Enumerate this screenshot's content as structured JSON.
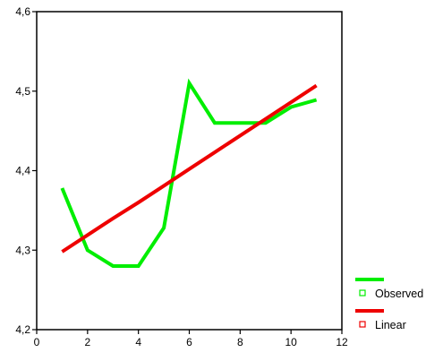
{
  "chart_data": {
    "type": "line",
    "title": "",
    "xlabel": "",
    "ylabel": "",
    "xlim": [
      0,
      12
    ],
    "ylim": [
      4.2,
      4.6
    ],
    "x_ticks": [
      {
        "value": 0,
        "label": "0"
      },
      {
        "value": 2,
        "label": "2"
      },
      {
        "value": 4,
        "label": "4"
      },
      {
        "value": 6,
        "label": "6"
      },
      {
        "value": 8,
        "label": "8"
      },
      {
        "value": 10,
        "label": "10"
      },
      {
        "value": 12,
        "label": "12"
      }
    ],
    "y_ticks": [
      {
        "value": 4.2,
        "label": "4,2"
      },
      {
        "value": 4.3,
        "label": "4,3"
      },
      {
        "value": 4.4,
        "label": "4,4"
      },
      {
        "value": 4.5,
        "label": "4,5"
      },
      {
        "value": 4.6,
        "label": "4,6"
      }
    ],
    "grid": false,
    "legend_position": "bottom-right",
    "series": [
      {
        "name": "Observed",
        "color": "#00ee00",
        "x": [
          1,
          2,
          3,
          4,
          5,
          6,
          7,
          8,
          9,
          10,
          11
        ],
        "y": [
          4.378,
          4.3,
          4.28,
          4.28,
          4.328,
          4.51,
          4.46,
          4.46,
          4.46,
          4.48,
          4.489
        ]
      },
      {
        "name": "Linear",
        "color": "#ee0000",
        "x": [
          1,
          2,
          3,
          4,
          5,
          6,
          7,
          8,
          9,
          10,
          11
        ],
        "y": [
          4.298,
          4.319,
          4.34,
          4.36,
          4.381,
          4.402,
          4.423,
          4.444,
          4.465,
          4.486,
          4.507
        ]
      }
    ]
  }
}
